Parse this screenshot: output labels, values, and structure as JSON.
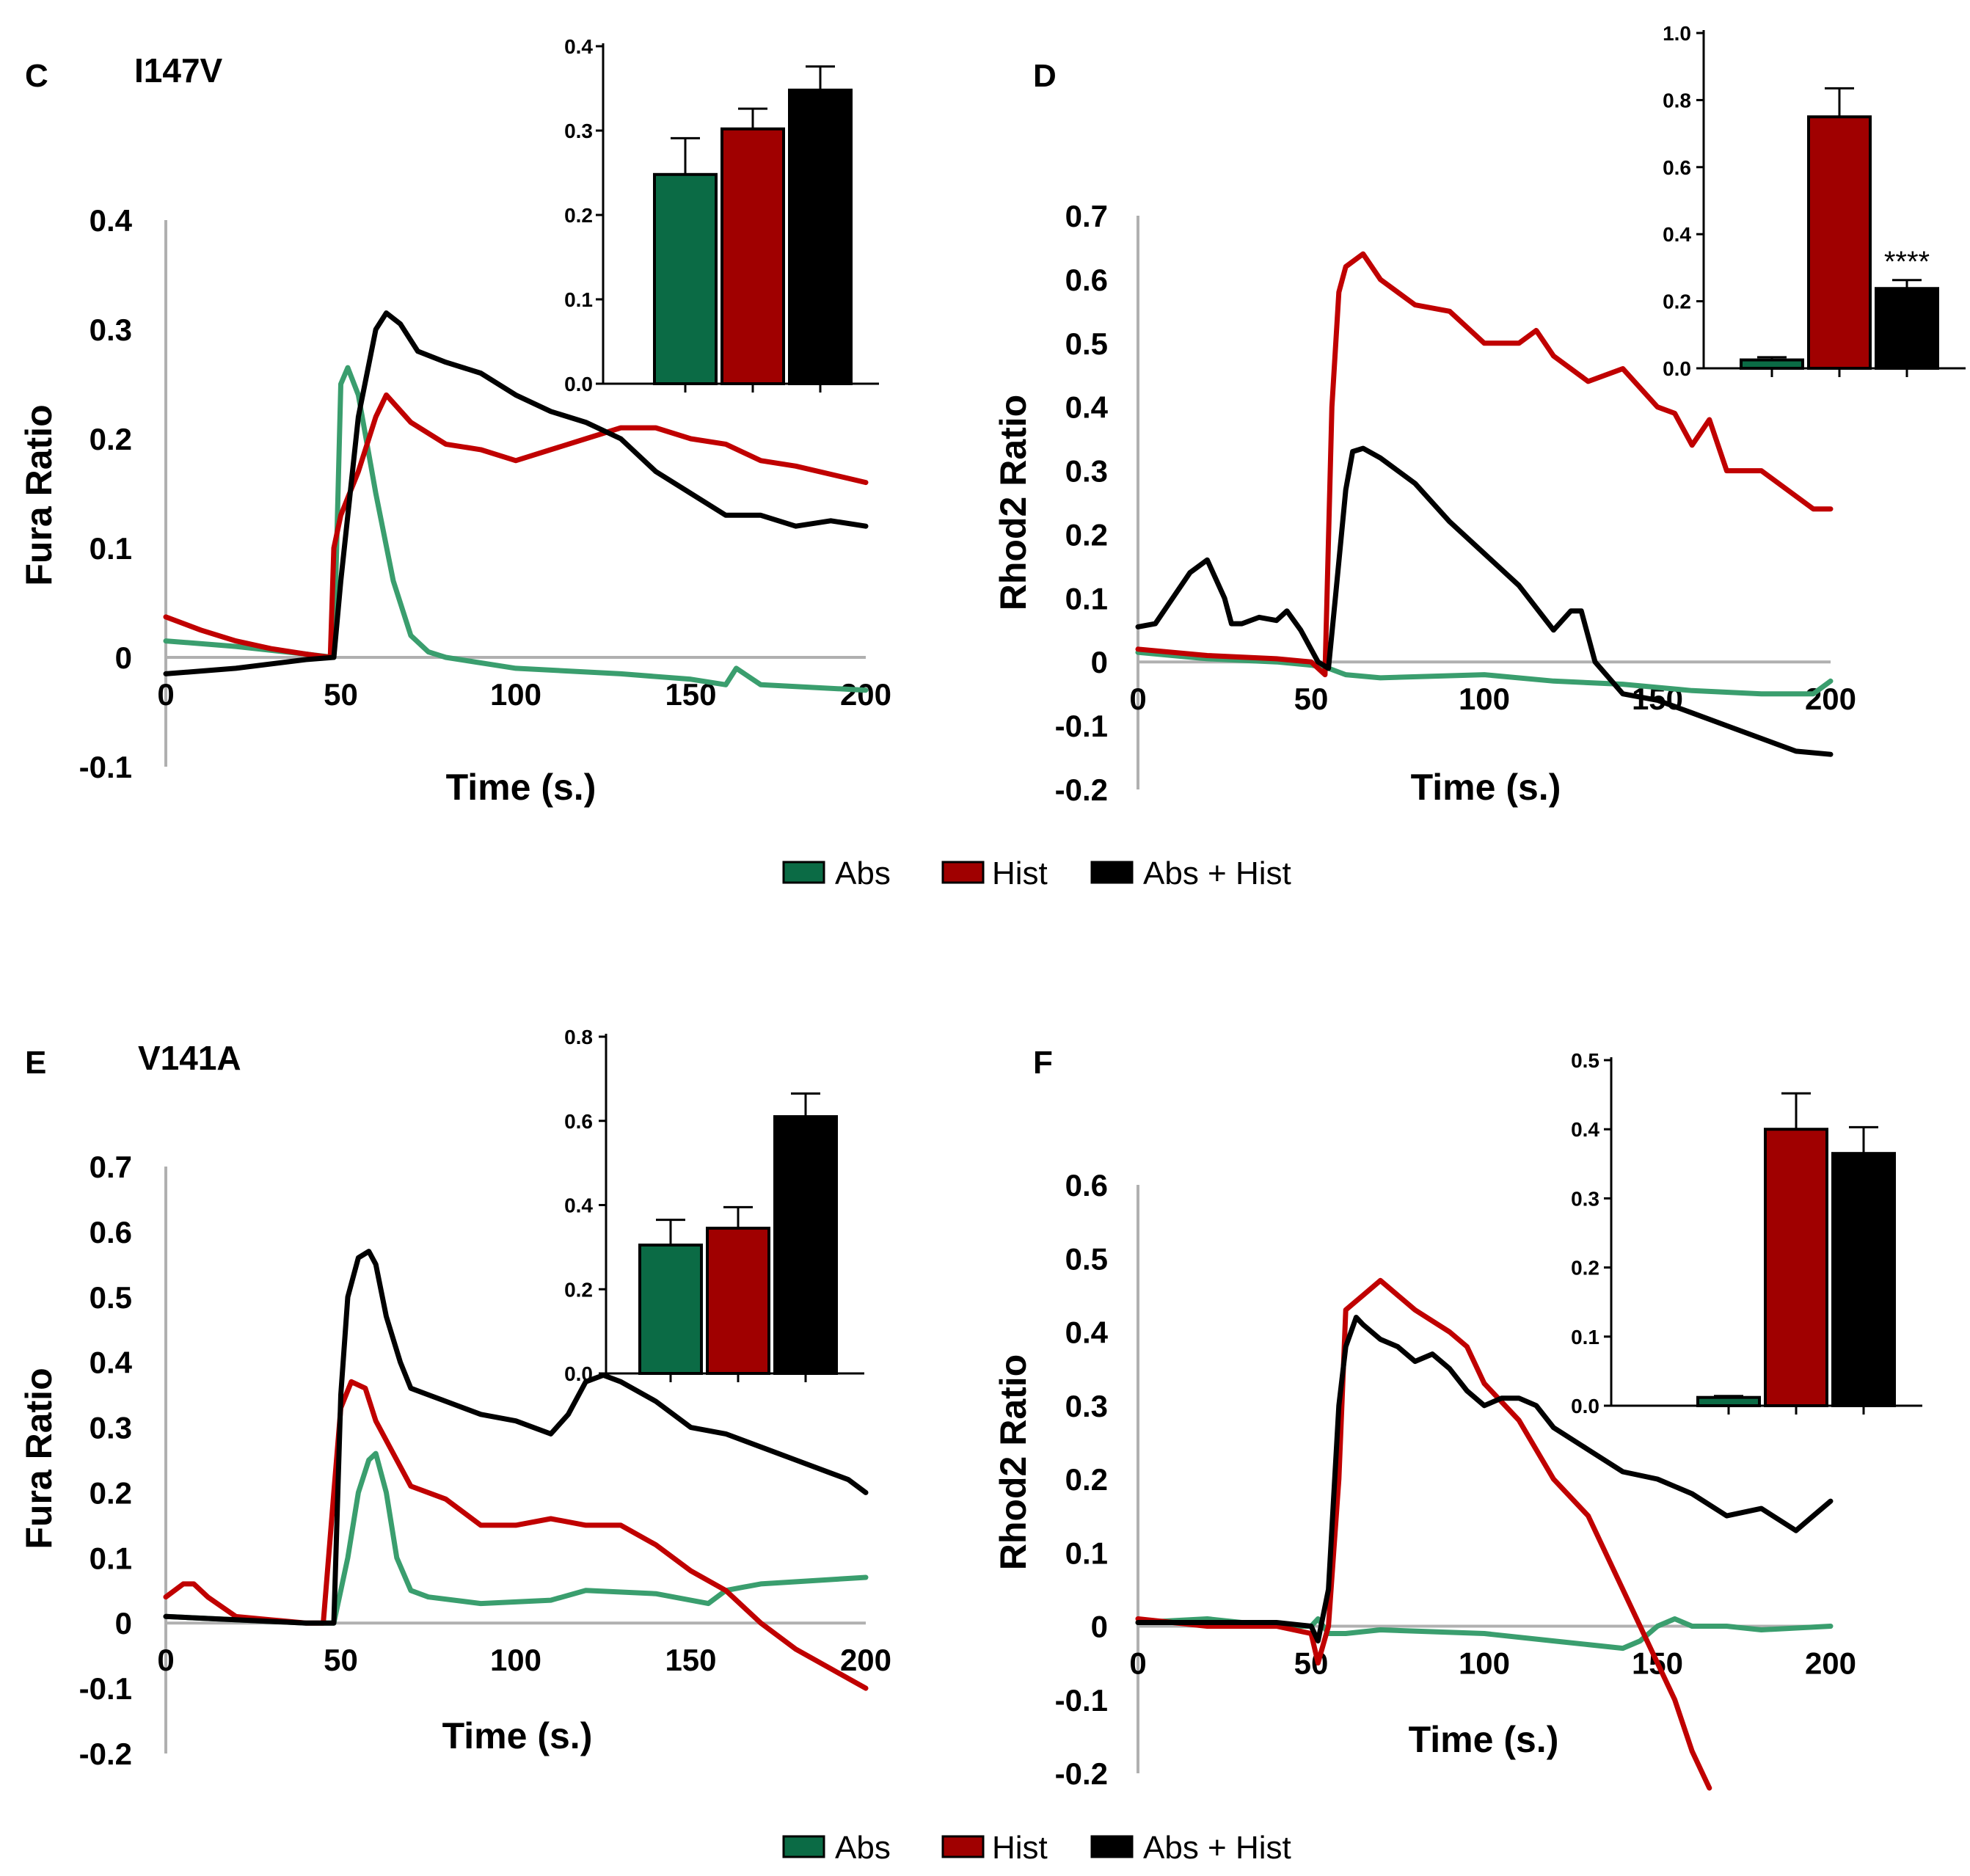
{
  "colors": {
    "abs": "#3a9e6e",
    "hist": "#c00000",
    "abs_hist": "#000000",
    "bar_abs": "#0b6b45",
    "bar_hist": "#a00000",
    "bar_abs_hist": "#000000",
    "axis_gray": "#b0b0b0"
  },
  "legend": {
    "items": [
      {
        "label": "Abs",
        "color": "#0b6b45"
      },
      {
        "label": "Hist",
        "color": "#a00000"
      },
      {
        "label": "Abs + Hist",
        "color": "#000000"
      }
    ]
  },
  "chart_data": [
    {
      "type": "line",
      "panel_label": "C",
      "title": "I147V",
      "xlabel": "Time (s.)",
      "ylabel": "Fura Ratio",
      "xlim": [
        0,
        200
      ],
      "ylim": [
        -0.1,
        0.4
      ],
      "xticks": [
        "0",
        "50",
        "100",
        "150",
        "200"
      ],
      "yticks": [
        "-0.1",
        "0",
        "0.1",
        "0.2",
        "0.3",
        "0.4"
      ],
      "ytick_values": [
        -0.1,
        0,
        0.1,
        0.2,
        0.3,
        0.4
      ],
      "series": [
        {
          "name": "Abs",
          "color": "#3a9e6e",
          "x": [
            0,
            20,
            40,
            48,
            50,
            52,
            55,
            60,
            65,
            70,
            75,
            80,
            100,
            130,
            150,
            160,
            163,
            170,
            200
          ],
          "y": [
            0.015,
            0.01,
            0.003,
            0.0,
            0.25,
            0.265,
            0.24,
            0.15,
            0.07,
            0.02,
            0.005,
            0.0,
            -0.01,
            -0.015,
            -0.02,
            -0.025,
            -0.01,
            -0.025,
            -0.03
          ]
        },
        {
          "name": "Hist",
          "color": "#c00000",
          "x": [
            0,
            10,
            20,
            30,
            40,
            47,
            48,
            50,
            55,
            60,
            63,
            70,
            80,
            90,
            100,
            110,
            120,
            130,
            140,
            150,
            160,
            170,
            180,
            200
          ],
          "y": [
            0.037,
            0.025,
            0.015,
            0.008,
            0.003,
            0.0,
            0.1,
            0.13,
            0.17,
            0.22,
            0.24,
            0.215,
            0.195,
            0.19,
            0.18,
            0.19,
            0.2,
            0.21,
            0.21,
            0.2,
            0.195,
            0.18,
            0.175,
            0.16
          ]
        },
        {
          "name": "Abs + Hist",
          "color": "#000000",
          "x": [
            0,
            20,
            40,
            48,
            50,
            55,
            60,
            63,
            67,
            72,
            80,
            90,
            100,
            110,
            120,
            130,
            140,
            150,
            160,
            170,
            180,
            190,
            200
          ],
          "y": [
            -0.015,
            -0.01,
            -0.002,
            0.0,
            0.07,
            0.22,
            0.3,
            0.315,
            0.305,
            0.28,
            0.27,
            0.26,
            0.24,
            0.225,
            0.215,
            0.2,
            0.17,
            0.15,
            0.13,
            0.13,
            0.12,
            0.125,
            0.12
          ]
        }
      ],
      "inset": {
        "type": "bar",
        "categories": [
          "Abs",
          "Hist",
          "Abs + Hist"
        ],
        "values": [
          0.248,
          0.302,
          0.348
        ],
        "errors": [
          0.043,
          0.024,
          0.028
        ],
        "ylim": [
          0,
          0.4
        ],
        "yticks": [
          "0.0",
          "0.1",
          "0.2",
          "0.3",
          "0.4"
        ],
        "ytick_values": [
          0,
          0.1,
          0.2,
          0.3,
          0.4
        ]
      }
    },
    {
      "type": "line",
      "panel_label": "D",
      "title": "",
      "xlabel": "Time (s.)",
      "ylabel": "Rhod2 Ratio",
      "xlim": [
        0,
        200
      ],
      "ylim": [
        -0.2,
        0.7
      ],
      "xticks": [
        "0",
        "50",
        "100",
        "150",
        "200"
      ],
      "yticks": [
        "-0.2",
        "-0.1",
        "0",
        "0.1",
        "0.2",
        "0.3",
        "0.4",
        "0.5",
        "0.6",
        "0.7"
      ],
      "ytick_values": [
        -0.2,
        -0.1,
        0,
        0.1,
        0.2,
        0.3,
        0.4,
        0.5,
        0.6,
        0.7
      ],
      "series": [
        {
          "name": "Abs",
          "color": "#3a9e6e",
          "x": [
            0,
            20,
            40,
            50,
            55,
            60,
            70,
            100,
            120,
            140,
            160,
            180,
            195,
            200
          ],
          "y": [
            0.015,
            0.005,
            0.0,
            -0.005,
            -0.01,
            -0.02,
            -0.025,
            -0.02,
            -0.03,
            -0.035,
            -0.045,
            -0.05,
            -0.05,
            -0.03
          ]
        },
        {
          "name": "Hist",
          "color": "#c00000",
          "x": [
            0,
            20,
            40,
            50,
            54,
            56,
            58,
            60,
            65,
            70,
            80,
            90,
            100,
            110,
            115,
            120,
            130,
            140,
            150,
            155,
            160,
            165,
            170,
            180,
            190,
            195,
            200
          ],
          "y": [
            0.02,
            0.01,
            0.005,
            0.0,
            -0.02,
            0.4,
            0.58,
            0.62,
            0.64,
            0.6,
            0.56,
            0.55,
            0.5,
            0.5,
            0.52,
            0.48,
            0.44,
            0.46,
            0.4,
            0.39,
            0.34,
            0.38,
            0.3,
            0.3,
            0.26,
            0.24,
            0.24
          ]
        },
        {
          "name": "Abs + Hist",
          "color": "#000000",
          "x": [
            0,
            5,
            10,
            15,
            20,
            25,
            27,
            30,
            35,
            40,
            43,
            47,
            52,
            55,
            57,
            60,
            62,
            65,
            70,
            80,
            90,
            100,
            110,
            120,
            125,
            128,
            132,
            140,
            150,
            160,
            170,
            180,
            190,
            200
          ],
          "y": [
            0.055,
            0.06,
            0.1,
            0.14,
            0.16,
            0.1,
            0.06,
            0.06,
            0.07,
            0.065,
            0.08,
            0.05,
            0.0,
            -0.01,
            0.1,
            0.27,
            0.33,
            0.335,
            0.32,
            0.28,
            0.22,
            0.17,
            0.12,
            0.05,
            0.08,
            0.08,
            0.0,
            -0.05,
            -0.06,
            -0.08,
            -0.1,
            -0.12,
            -0.14,
            -0.145
          ]
        }
      ],
      "inset": {
        "type": "bar",
        "categories": [
          "Abs",
          "Hist",
          "Abs + Hist"
        ],
        "values": [
          0.025,
          0.75,
          0.238
        ],
        "errors": [
          0.008,
          0.085,
          0.025
        ],
        "annotation": "****",
        "ylim": [
          0,
          1.0
        ],
        "yticks": [
          "0.0",
          "0.2",
          "0.4",
          "0.6",
          "0.8",
          "1.0"
        ],
        "ytick_values": [
          0,
          0.2,
          0.4,
          0.6,
          0.8,
          1.0
        ]
      }
    },
    {
      "type": "line",
      "panel_label": "E",
      "title": "V141A",
      "xlabel": "Time (s.)",
      "ylabel": "Fura Ratio",
      "xlim": [
        0,
        200
      ],
      "ylim": [
        -0.2,
        0.7
      ],
      "xticks": [
        "0",
        "50",
        "100",
        "150",
        "200"
      ],
      "yticks": [
        "-0.2",
        "-0.1",
        "0",
        "0.1",
        "0.2",
        "0.3",
        "0.4",
        "0.5",
        "0.6",
        "0.7"
      ],
      "ytick_values": [
        -0.2,
        -0.1,
        0,
        0.1,
        0.2,
        0.3,
        0.4,
        0.5,
        0.6,
        0.7
      ],
      "series": [
        {
          "name": "Abs",
          "color": "#3a9e6e",
          "x": [
            0,
            20,
            40,
            48,
            52,
            55,
            58,
            60,
            63,
            66,
            70,
            75,
            90,
            110,
            120,
            140,
            155,
            160,
            170,
            200
          ],
          "y": [
            0.01,
            0.005,
            0.0,
            0.0,
            0.1,
            0.2,
            0.25,
            0.26,
            0.2,
            0.1,
            0.05,
            0.04,
            0.03,
            0.035,
            0.05,
            0.045,
            0.03,
            0.05,
            0.06,
            0.07
          ]
        },
        {
          "name": "Hist",
          "color": "#c00000",
          "x": [
            0,
            5,
            8,
            12,
            20,
            30,
            40,
            45,
            48,
            50,
            53,
            57,
            60,
            65,
            70,
            80,
            90,
            100,
            110,
            120,
            130,
            140,
            150,
            160,
            170,
            180,
            190,
            200
          ],
          "y": [
            0.04,
            0.06,
            0.06,
            0.04,
            0.01,
            0.005,
            0.0,
            0.0,
            0.2,
            0.33,
            0.37,
            0.36,
            0.31,
            0.26,
            0.21,
            0.19,
            0.15,
            0.15,
            0.16,
            0.15,
            0.15,
            0.12,
            0.08,
            0.05,
            0.0,
            -0.04,
            -0.07,
            -0.1
          ]
        },
        {
          "name": "Abs + Hist",
          "color": "#000000",
          "x": [
            0,
            20,
            40,
            48,
            50,
            52,
            55,
            58,
            60,
            63,
            67,
            70,
            75,
            80,
            90,
            100,
            110,
            115,
            120,
            125,
            130,
            140,
            150,
            160,
            170,
            180,
            190,
            195,
            200
          ],
          "y": [
            0.01,
            0.005,
            0.0,
            0.0,
            0.35,
            0.5,
            0.56,
            0.57,
            0.55,
            0.47,
            0.4,
            0.36,
            0.35,
            0.34,
            0.32,
            0.31,
            0.29,
            0.32,
            0.37,
            0.38,
            0.37,
            0.34,
            0.3,
            0.29,
            0.27,
            0.25,
            0.23,
            0.22,
            0.2
          ]
        }
      ],
      "inset": {
        "type": "bar",
        "categories": [
          "Abs",
          "Hist",
          "Abs + Hist"
        ],
        "values": [
          0.305,
          0.345,
          0.61
        ],
        "errors": [
          0.06,
          0.05,
          0.055
        ],
        "ylim": [
          0,
          0.8
        ],
        "yticks": [
          "0.0",
          "0.2",
          "0.4",
          "0.6",
          "0.8"
        ],
        "ytick_values": [
          0,
          0.2,
          0.4,
          0.6,
          0.8
        ]
      }
    },
    {
      "type": "line",
      "panel_label": "F",
      "title": "",
      "xlabel": "Time (s.)",
      "ylabel": "Rhod2 Ratio",
      "xlim": [
        0,
        200
      ],
      "ylim": [
        -0.2,
        0.6
      ],
      "xticks": [
        "0",
        "50",
        "100",
        "150",
        "200"
      ],
      "yticks": [
        "-0.2",
        "-0.1",
        "0",
        "0.1",
        "0.2",
        "0.3",
        "0.4",
        "0.5",
        "0.6"
      ],
      "ytick_values": [
        -0.2,
        -0.1,
        0,
        0.1,
        0.2,
        0.3,
        0.4,
        0.5,
        0.6
      ],
      "series": [
        {
          "name": "Abs",
          "color": "#3a9e6e",
          "x": [
            0,
            20,
            40,
            50,
            52,
            55,
            60,
            70,
            100,
            120,
            130,
            140,
            145,
            150,
            155,
            160,
            170,
            180,
            200
          ],
          "y": [
            0.005,
            0.01,
            0.0,
            0.0,
            0.01,
            -0.01,
            -0.01,
            -0.005,
            -0.01,
            -0.02,
            -0.025,
            -0.03,
            -0.02,
            0.0,
            0.01,
            0.0,
            0.0,
            -0.005,
            0.0
          ]
        },
        {
          "name": "Hist",
          "color": "#c00000",
          "x": [
            0,
            20,
            40,
            50,
            52,
            55,
            58,
            60,
            65,
            70,
            75,
            80,
            90,
            95,
            100,
            110,
            120,
            130,
            140,
            145,
            150,
            155,
            160,
            165
          ],
          "y": [
            0.01,
            0.0,
            0.0,
            -0.01,
            -0.05,
            0.0,
            0.2,
            0.43,
            0.45,
            0.47,
            0.45,
            0.43,
            0.4,
            0.38,
            0.33,
            0.28,
            0.2,
            0.15,
            0.05,
            0.0,
            -0.05,
            -0.1,
            -0.17,
            -0.22
          ]
        },
        {
          "name": "Abs + Hist",
          "color": "#000000",
          "x": [
            0,
            20,
            40,
            50,
            52,
            55,
            58,
            60,
            63,
            65,
            70,
            75,
            80,
            85,
            90,
            95,
            100,
            105,
            110,
            115,
            120,
            130,
            140,
            150,
            160,
            170,
            180,
            190,
            195,
            200
          ],
          "y": [
            0.005,
            0.005,
            0.005,
            0.0,
            -0.02,
            0.05,
            0.3,
            0.38,
            0.42,
            0.41,
            0.39,
            0.38,
            0.36,
            0.37,
            0.35,
            0.32,
            0.3,
            0.31,
            0.31,
            0.3,
            0.27,
            0.24,
            0.21,
            0.2,
            0.18,
            0.15,
            0.16,
            0.13,
            0.15,
            0.17
          ]
        }
      ],
      "inset": {
        "type": "bar",
        "categories": [
          "Abs",
          "Hist",
          "Abs + Hist"
        ],
        "values": [
          0.012,
          0.4,
          0.365
        ],
        "errors": [
          0.002,
          0.052,
          0.038
        ],
        "ylim": [
          0,
          0.5
        ],
        "yticks": [
          "0.0",
          "0.1",
          "0.2",
          "0.3",
          "0.4",
          "0.5"
        ],
        "ytick_values": [
          0,
          0.1,
          0.2,
          0.3,
          0.4,
          0.5
        ]
      }
    }
  ]
}
